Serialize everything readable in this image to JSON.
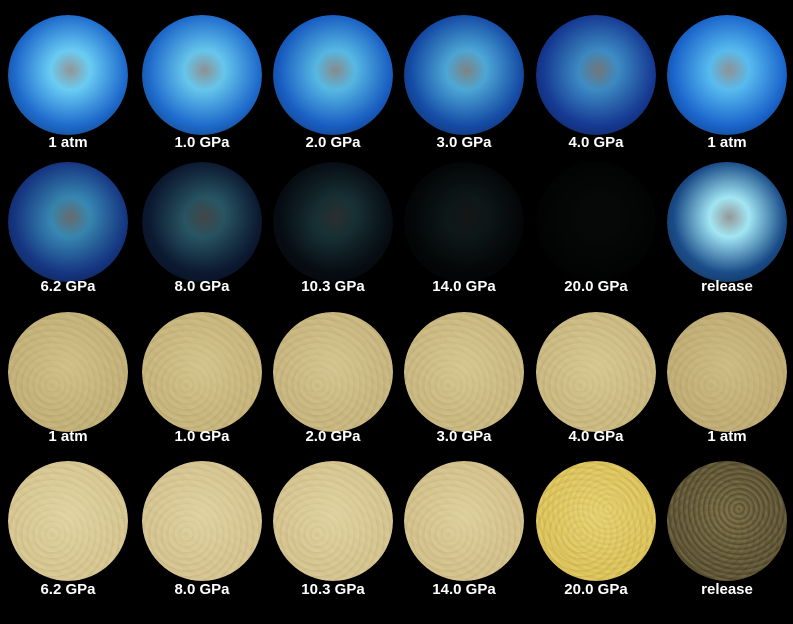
{
  "rows": [
    {
      "kind": "photoluminescence",
      "cells": [
        {
          "label": "1 atm",
          "glow": "#6fd6ff",
          "edge": "#1f6fd6",
          "core": 1.0
        },
        {
          "label": "1.0 GPa",
          "glow": "#6fd6ff",
          "edge": "#1f6fd6",
          "core": 0.96
        },
        {
          "label": "2.0 GPa",
          "glow": "#62cfff",
          "edge": "#1a62cc",
          "core": 0.92
        },
        {
          "label": "3.0 GPa",
          "glow": "#5cc8ff",
          "edge": "#164fae",
          "core": 0.86
        },
        {
          "label": "4.0 GPa",
          "glow": "#4fb6ff",
          "edge": "#173c9a",
          "core": 0.78
        },
        {
          "label": "1 atm",
          "glow": "#5ec8ff",
          "edge": "#1c6ad6",
          "core": 0.98
        }
      ]
    },
    {
      "kind": "photoluminescence",
      "cells": [
        {
          "label": "6.2 GPa",
          "glow": "#4fc2ff",
          "edge": "#173888",
          "core": 0.7
        },
        {
          "label": "8.0 GPa",
          "glow": "#57b8d6",
          "edge": "#0c1a33",
          "core": 0.45
        },
        {
          "label": "10.3 GPa",
          "glow": "#4a9aa8",
          "edge": "#070d14",
          "core": 0.3
        },
        {
          "label": "14.0 GPa",
          "glow": "#2c4e52",
          "edge": "#040607",
          "core": 0.14
        },
        {
          "label": "20.0 GPa",
          "glow": "#141b1c",
          "edge": "#020303",
          "core": 0.05
        },
        {
          "label": "release",
          "glow": "#a9f1ff",
          "edge": "#1b4f8f",
          "core": 1.0
        }
      ]
    },
    {
      "kind": "optical",
      "cells": [
        {
          "label": "1 atm",
          "base": "#c4b27a",
          "hi": "#dccd96",
          "lo": "#a89660",
          "speck": "#8a7644",
          "dark": 0.0
        },
        {
          "label": "1.0 GPa",
          "base": "#c8b67e",
          "hi": "#ddd09a",
          "lo": "#aa9862",
          "speck": "#8c7846",
          "dark": 0.0
        },
        {
          "label": "2.0 GPa",
          "base": "#c9b781",
          "hi": "#ded19c",
          "lo": "#ab9964",
          "speck": "#8c7846",
          "dark": 0.0
        },
        {
          "label": "3.0 GPa",
          "base": "#cbb982",
          "hi": "#dfd29d",
          "lo": "#ad9b66",
          "speck": "#8d7948",
          "dark": 0.0
        },
        {
          "label": "4.0 GPa",
          "base": "#ccba83",
          "hi": "#e0d39e",
          "lo": "#ae9c67",
          "speck": "#8e7a48",
          "dark": 0.0
        },
        {
          "label": "1 atm",
          "base": "#c2ae77",
          "hi": "#d8c992",
          "lo": "#a4925d",
          "speck": "#867242",
          "dark": 0.0
        }
      ]
    },
    {
      "kind": "optical",
      "cells": [
        {
          "label": "6.2 GPa",
          "base": "#d7c793",
          "hi": "#eadfb0",
          "lo": "#bba975",
          "speck": "#9a8550",
          "dark": 0.0
        },
        {
          "label": "8.0 GPa",
          "base": "#d6c592",
          "hi": "#e9ddaf",
          "lo": "#baa874",
          "speck": "#99844f",
          "dark": 0.0
        },
        {
          "label": "10.3 GPa",
          "base": "#d6c591",
          "hi": "#e9deae",
          "lo": "#b9a773",
          "speck": "#98834e",
          "dark": 0.0
        },
        {
          "label": "14.0 GPa",
          "base": "#d4c28d",
          "hi": "#e7dbaa",
          "lo": "#b7a56f",
          "speck": "#96814c",
          "dark": 0.0
        },
        {
          "label": "20.0 GPa",
          "base": "#e2cc62",
          "hi": "#f1e08a",
          "lo": "#c7a83e",
          "speck": "#8f6418",
          "dark": 0.1
        },
        {
          "label": "release",
          "base": "#6f6440",
          "hi": "#9a8c5a",
          "lo": "#4a4228",
          "speck": "#2c2616",
          "dark": 0.35
        }
      ]
    }
  ]
}
